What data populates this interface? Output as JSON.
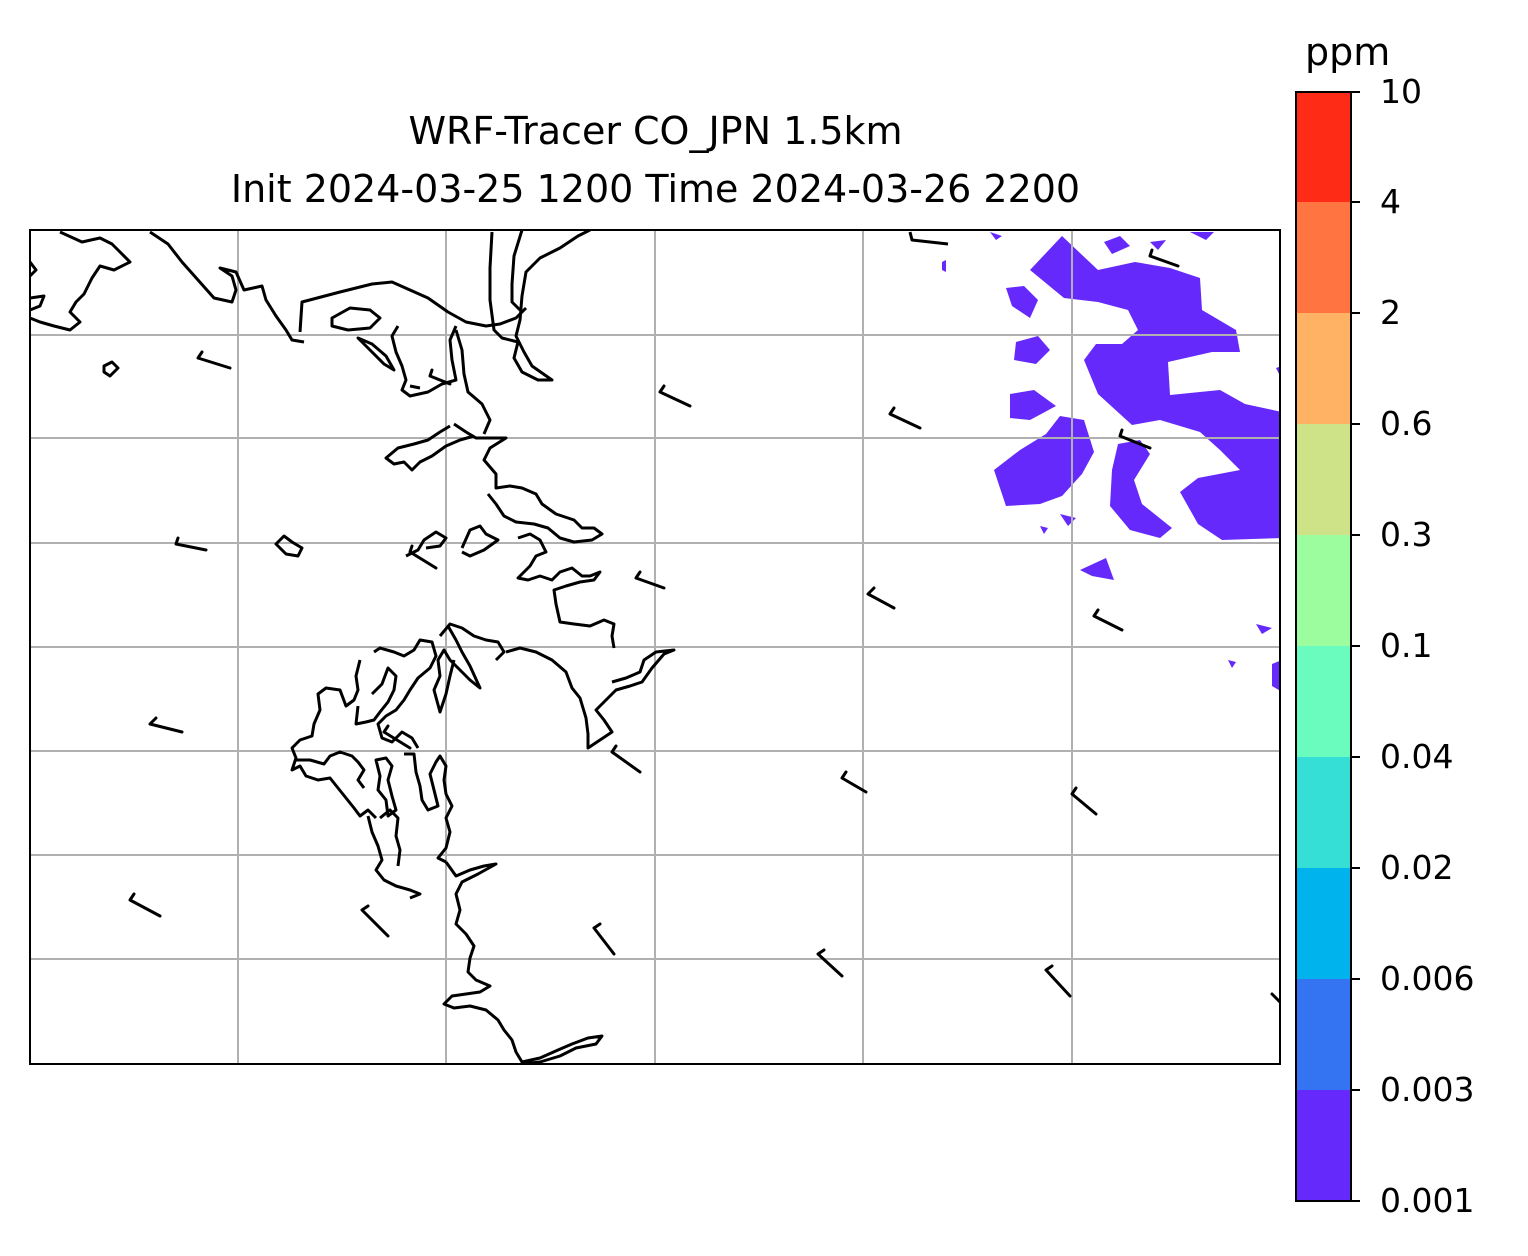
{
  "title_line1": "WRF-Tracer CO_JPN 1.5km",
  "title_line2": "Init 2024-03-25 1200 Time 2024-03-26 2200",
  "colorbar": {
    "unit": "ppm",
    "ticks": [
      "0.001",
      "0.003",
      "0.006",
      "0.02",
      "0.04",
      "0.1",
      "0.3",
      "0.6",
      "2",
      "4",
      "10"
    ],
    "colors": [
      "#6529fb",
      "#3474f3",
      "#00b3ec",
      "#35dfd6",
      "#6afcbf",
      "#9cfd9e",
      "#cee387",
      "#ffb264",
      "#ff7440",
      "#fe2b17"
    ]
  },
  "map": {
    "concentration_band_color": "#6529fb",
    "coastline_color": "#000000",
    "gridline_color": "#b0b0b0"
  }
}
